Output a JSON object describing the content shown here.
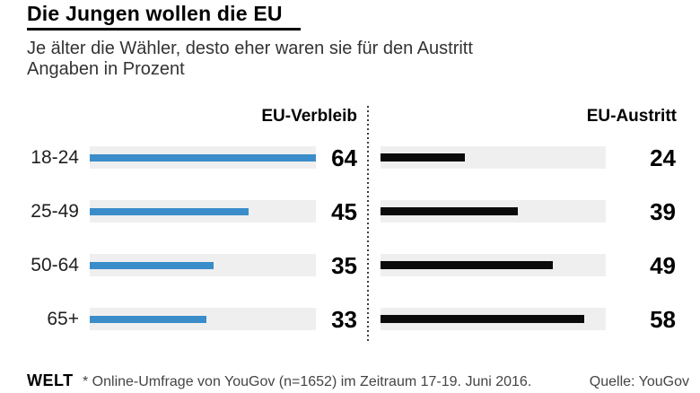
{
  "header": {
    "title": "Die Jungen wollen die EU",
    "subtitle_line1": "Je älter die Wähler, desto eher waren sie für den Austritt",
    "subtitle_line2": "Angaben in Prozent"
  },
  "chart_data": {
    "type": "bar",
    "orientation": "horizontal",
    "layout": "two-panel comparison separated by dotted divider",
    "categories": [
      "18-24",
      "25-49",
      "50-64",
      "65+"
    ],
    "series": [
      {
        "name": "EU-Verbleib",
        "color": "#3a8dc9",
        "values": [
          64,
          45,
          35,
          33
        ]
      },
      {
        "name": "EU-Austritt",
        "color": "#0b0b0b",
        "values": [
          24,
          39,
          49,
          58
        ]
      }
    ],
    "scale_max": 64,
    "value_labels_shown": true,
    "track_color": "#efefef",
    "unit": "Prozent"
  },
  "footer": {
    "logo": "WELT",
    "footnote": "* Online-Umfrage von YouGov (n=1652) im Zeitraum 17-19. Juni 2016.",
    "source": "Quelle: YouGov"
  }
}
